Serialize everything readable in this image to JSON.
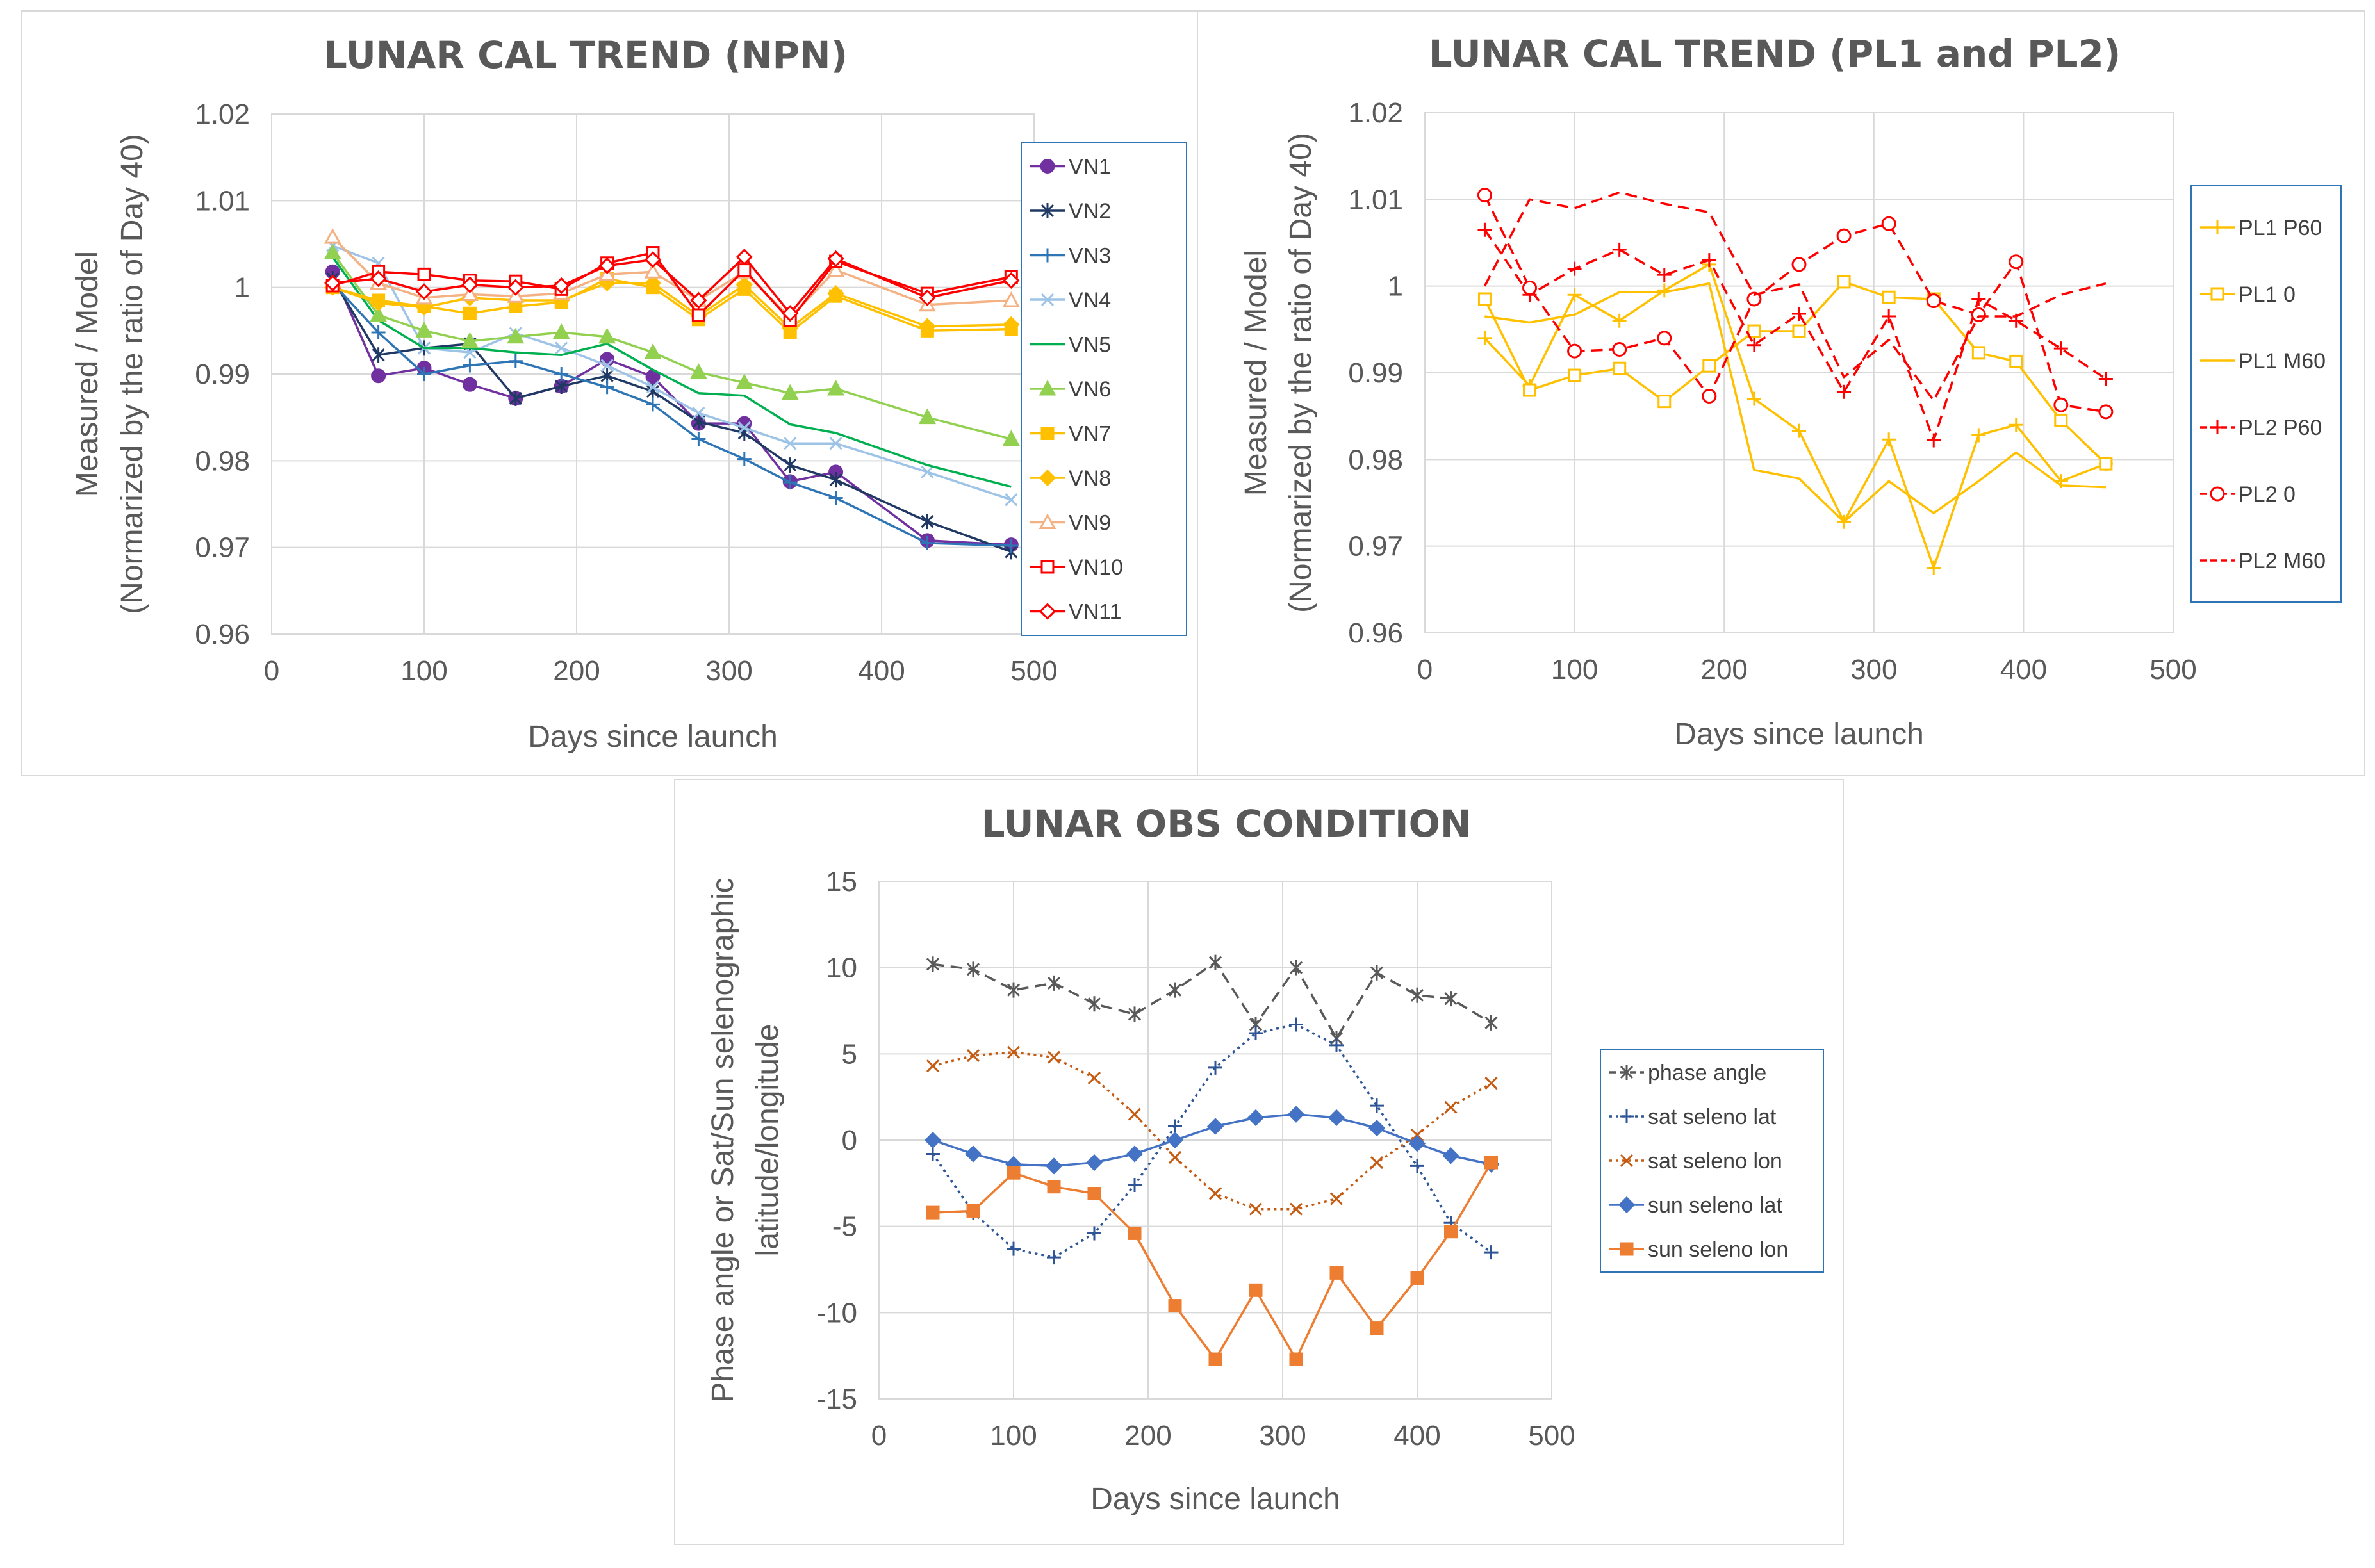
{
  "chart_data": [
    {
      "type": "line",
      "title": "LUNAR CAL TREND (NPN)",
      "xlabel": "Days since launch",
      "ylabel": "Measured / Model",
      "ylabel2": "(Normarized by the ratio of Day 40)",
      "xlim": [
        0,
        500
      ],
      "ylim": [
        0.96,
        1.02
      ],
      "xticks": [
        "0",
        "100",
        "200",
        "300",
        "400",
        "500"
      ],
      "yticks": [
        "0.96",
        "0.97",
        "0.98",
        "0.99",
        "1",
        "1.01",
        "1.02"
      ],
      "x": [
        40,
        70,
        100,
        130,
        160,
        190,
        220,
        250,
        280,
        310,
        340,
        370,
        430,
        485
      ],
      "series": [
        {
          "name": "VN1",
          "color": "#7030a0",
          "marker": "circle",
          "dash": false,
          "values": [
            1.0018,
            0.9898,
            0.9907,
            0.9888,
            0.9872,
            0.9886,
            0.9917,
            0.9897,
            0.9843,
            0.9843,
            0.9776,
            0.9787,
            0.9708,
            0.9703
          ]
        },
        {
          "name": "VN2",
          "color": "#203864",
          "marker": "star",
          "dash": false,
          "values": [
            1.001,
            0.9922,
            0.993,
            0.9935,
            0.9872,
            0.9886,
            0.9898,
            0.988,
            0.9845,
            0.9832,
            0.9795,
            0.9778,
            0.973,
            0.9695
          ]
        },
        {
          "name": "VN3",
          "color": "#2e75b6",
          "marker": "plus",
          "dash": false,
          "values": [
            1.0005,
            0.9948,
            0.99,
            0.991,
            0.9915,
            0.99,
            0.9885,
            0.9865,
            0.9825,
            0.9802,
            0.9775,
            0.9757,
            0.9705,
            0.9702
          ]
        },
        {
          "name": "VN4",
          "color": "#9dc3e6",
          "marker": "x",
          "dash": false,
          "values": [
            1.0048,
            1.0028,
            0.993,
            0.9925,
            0.9947,
            0.993,
            0.991,
            0.9885,
            0.9855,
            0.9838,
            0.982,
            0.982,
            0.9787,
            0.9755
          ]
        },
        {
          "name": "VN5",
          "color": "#00b050",
          "marker": "none",
          "dash": false,
          "values": [
            1.0035,
            0.9962,
            0.993,
            0.993,
            0.9925,
            0.9922,
            0.9935,
            0.9905,
            0.9878,
            0.9875,
            0.9842,
            0.9832,
            0.9795,
            0.977
          ]
        },
        {
          "name": "VN6",
          "color": "#92d050",
          "marker": "triangle",
          "dash": false,
          "values": [
            1.004,
            0.9968,
            0.995,
            0.9938,
            0.9943,
            0.9948,
            0.9943,
            0.9925,
            0.9902,
            0.989,
            0.9878,
            0.9883,
            0.985,
            0.9825
          ]
        },
        {
          "name": "VN7",
          "color": "#ffc000",
          "marker": "square",
          "dash": false,
          "values": [
            1.0,
            0.9985,
            0.9978,
            0.997,
            0.9978,
            0.9983,
            1.001,
            1.0,
            0.9963,
            0.9998,
            0.9948,
            0.999,
            0.995,
            0.9952
          ]
        },
        {
          "name": "VN8",
          "color": "#ffc000",
          "marker": "diamond",
          "dash": false,
          "values": [
            1.0,
            0.9982,
            0.9977,
            0.9988,
            0.9985,
            0.9985,
            1.0005,
            1.0005,
            0.9967,
            1.0003,
            0.9953,
            0.9993,
            0.9955,
            0.9957
          ]
        },
        {
          "name": "VN9",
          "color": "#f4b183",
          "marker": "triangle-open",
          "dash": false,
          "values": [
            1.0058,
            1.0005,
            0.9988,
            0.9992,
            0.999,
            0.9993,
            1.0015,
            1.0018,
            0.9985,
            1.0018,
            0.9965,
            1.002,
            0.998,
            0.9985
          ]
        },
        {
          "name": "VN10",
          "color": "#ff0000",
          "marker": "square-open",
          "dash": false,
          "values": [
            1.0002,
            1.0018,
            1.0015,
            1.0008,
            1.0007,
            0.9998,
            1.0028,
            1.004,
            0.9968,
            1.002,
            0.9962,
            1.003,
            0.9993,
            1.0012
          ]
        },
        {
          "name": "VN11",
          "color": "#ff0000",
          "marker": "diamond-open",
          "dash": false,
          "values": [
            1.0005,
            1.001,
            0.9995,
            1.0003,
            1.0,
            1.0002,
            1.0025,
            1.0032,
            0.9985,
            1.0035,
            0.997,
            1.0033,
            0.9988,
            1.0008
          ]
        }
      ]
    },
    {
      "type": "line",
      "title": "LUNAR CAL TREND (PL1 and PL2)",
      "xlabel": "Days since launch",
      "ylabel": "Measured / Model",
      "ylabel2": "(Normarized by the ratio of Day 40)",
      "xlim": [
        0,
        500
      ],
      "ylim": [
        0.96,
        1.02
      ],
      "xticks": [
        "0",
        "100",
        "200",
        "300",
        "400",
        "500"
      ],
      "yticks": [
        "0.96",
        "0.97",
        "0.98",
        "0.99",
        "1",
        "1.01",
        "1.02"
      ],
      "x": [
        40,
        70,
        100,
        130,
        160,
        190,
        220,
        250,
        280,
        310,
        340,
        370,
        395,
        425,
        455
      ],
      "series": [
        {
          "name": "PL1 P60",
          "color": "#ffc000",
          "marker": "plus",
          "dash": false,
          "values": [
            0.994,
            0.9885,
            0.999,
            0.996,
            0.9995,
            1.0025,
            0.987,
            0.9833,
            0.9728,
            0.9823,
            0.9675,
            0.9828,
            0.984,
            0.9775,
            0.9795
          ]
        },
        {
          "name": "PL1 0",
          "color": "#ffc000",
          "marker": "square-open",
          "dash": false,
          "values": [
            0.9985,
            0.988,
            0.9897,
            0.9905,
            0.9867,
            0.9908,
            0.9948,
            0.9948,
            1.0005,
            0.9987,
            0.9985,
            0.9923,
            0.9913,
            0.9845,
            0.9795
          ]
        },
        {
          "name": "PL1 M60",
          "color": "#ffc000",
          "marker": "none",
          "dash": false,
          "values": [
            0.9965,
            0.9958,
            0.9967,
            0.9993,
            0.9993,
            1.0003,
            0.9788,
            0.9778,
            0.9728,
            0.9775,
            0.9738,
            0.9775,
            0.9808,
            0.977,
            0.9768
          ]
        },
        {
          "name": "PL2 P60",
          "color": "#ff0000",
          "marker": "plus",
          "dash": true,
          "values": [
            1.0065,
            0.999,
            1.002,
            1.0042,
            1.0013,
            1.003,
            0.9932,
            0.9968,
            0.9878,
            0.9965,
            0.9822,
            0.9985,
            0.996,
            0.9928,
            0.9893
          ]
        },
        {
          "name": "PL2 0",
          "color": "#ff0000",
          "marker": "circle-open",
          "dash": true,
          "values": [
            1.0105,
            0.9998,
            0.9925,
            0.9927,
            0.994,
            0.9873,
            0.9985,
            1.0025,
            1.0058,
            1.0072,
            0.9983,
            0.9967,
            1.0028,
            0.9863,
            0.9855
          ]
        },
        {
          "name": "PL2 M60",
          "color": "#ff0000",
          "marker": "none",
          "dash": true,
          "values": [
            1.0,
            1.01,
            1.009,
            1.0108,
            1.0095,
            1.0085,
            0.999,
            1.0002,
            0.9895,
            0.9938,
            0.9868,
            0.9965,
            0.9965,
            0.999,
            1.0003
          ]
        }
      ]
    },
    {
      "type": "line",
      "title": "LUNAR OBS CONDITION",
      "xlabel": "Days since launch",
      "ylabel": "Phase angle or Sat/Sun selenographic",
      "ylabel2": "latitude/longitude",
      "xlim": [
        0,
        500
      ],
      "ylim": [
        -15,
        15
      ],
      "xticks": [
        "0",
        "100",
        "200",
        "300",
        "400",
        "500"
      ],
      "yticks": [
        "-15",
        "-10",
        "-5",
        "0",
        "5",
        "10",
        "15"
      ],
      "x": [
        40,
        70,
        100,
        130,
        160,
        190,
        220,
        250,
        280,
        310,
        340,
        370,
        400,
        425,
        455
      ],
      "series": [
        {
          "name": "phase angle",
          "color": "#595959",
          "marker": "star",
          "dash": "dashed",
          "values": [
            10.2,
            9.9,
            8.7,
            9.1,
            7.9,
            7.3,
            8.7,
            10.3,
            6.7,
            10.0,
            5.9,
            9.7,
            8.4,
            8.2,
            6.8
          ]
        },
        {
          "name": "sat seleno lat",
          "color": "#2f5597",
          "marker": "plus",
          "dash": "dotted",
          "values": [
            -0.8,
            -4.2,
            -6.3,
            -6.8,
            -5.4,
            -2.6,
            0.8,
            4.2,
            6.2,
            6.7,
            5.5,
            2.0,
            -1.5,
            -4.8,
            -6.5
          ]
        },
        {
          "name": "sat seleno lon",
          "color": "#c55a11",
          "marker": "x",
          "dash": "dotted",
          "values": [
            4.3,
            4.9,
            5.1,
            4.8,
            3.6,
            1.5,
            -1.0,
            -3.1,
            -4.0,
            -4.0,
            -3.4,
            -1.3,
            0.3,
            1.9,
            3.3
          ]
        },
        {
          "name": "sun seleno lat",
          "color": "#4472c4",
          "marker": "diamond",
          "dash": "solid",
          "values": [
            0.0,
            -0.8,
            -1.4,
            -1.5,
            -1.3,
            -0.8,
            0.0,
            0.8,
            1.3,
            1.5,
            1.3,
            0.7,
            -0.2,
            -0.9,
            -1.4
          ]
        },
        {
          "name": "sun seleno lon",
          "color": "#ed7d31",
          "marker": "square",
          "dash": "solid",
          "values": [
            -4.2,
            -4.1,
            -1.9,
            -2.7,
            -3.1,
            -5.4,
            -9.6,
            -12.7,
            -8.7,
            -12.7,
            -7.7,
            -10.9,
            -8.0,
            -5.3,
            -1.3
          ]
        }
      ]
    }
  ]
}
